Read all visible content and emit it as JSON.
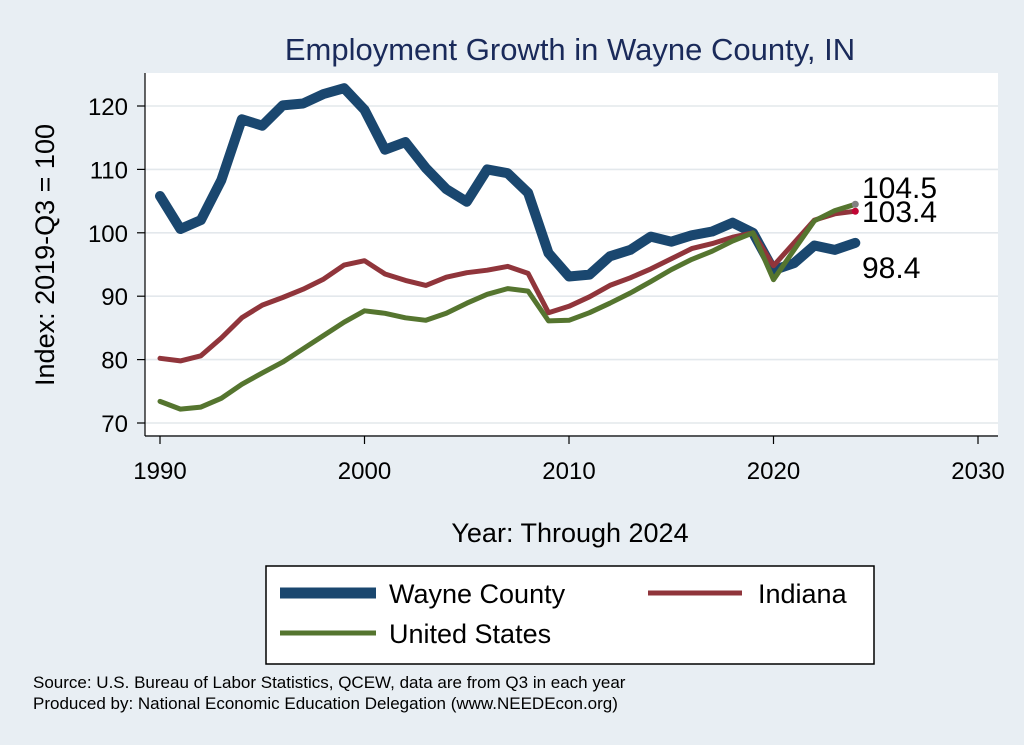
{
  "chart_data": {
    "type": "line",
    "title": "Employment Growth in Wayne County, IN",
    "xlabel": "Year: Through 2024",
    "ylabel": "Index: 2019-Q3 = 100",
    "xlim": [
      1990,
      2030
    ],
    "ylim": [
      68,
      126
    ],
    "x_ticks": [
      1990,
      2000,
      2010,
      2020,
      2030
    ],
    "x_tick_labels": [
      "1990",
      "2000",
      "2010",
      "2020",
      "2030"
    ],
    "y_ticks": [
      70,
      80,
      90,
      100,
      110,
      120
    ],
    "y_tick_labels": [
      "70",
      "80",
      "90",
      "100",
      "110",
      "120"
    ],
    "x": [
      1990,
      1991,
      1992,
      1993,
      1994,
      1995,
      1996,
      1997,
      1998,
      1999,
      2000,
      2001,
      2002,
      2003,
      2004,
      2005,
      2006,
      2007,
      2008,
      2009,
      2010,
      2011,
      2012,
      2013,
      2014,
      2015,
      2016,
      2017,
      2018,
      2019,
      2020,
      2021,
      2022,
      2023,
      2024
    ],
    "series": [
      {
        "name": "Wayne  County",
        "color": "#1a476f",
        "values": [
          105.8,
          100.6,
          102,
          108.3,
          117.9,
          116.9,
          120.1,
          120.4,
          121.9,
          122.8,
          119.4,
          113.1,
          114.3,
          110.2,
          106.9,
          104.9,
          110,
          109.4,
          106.3,
          96.8,
          93.1,
          93.4,
          96.3,
          97.3,
          99.4,
          98.6,
          99.6,
          100.2,
          101.6,
          100,
          94.1,
          95.2,
          98,
          97.3,
          98.4
        ],
        "end_label": "98.4",
        "end_color": "#1a476f"
      },
      {
        "name": "Indiana",
        "color": "#90353b",
        "values": [
          80.2,
          79.8,
          80.6,
          83.4,
          86.6,
          88.6,
          89.8,
          91.1,
          92.7,
          94.9,
          95.6,
          93.5,
          92.5,
          91.7,
          93,
          93.7,
          94.1,
          94.7,
          93.6,
          87.4,
          88.4,
          89.9,
          91.7,
          92.9,
          94.3,
          95.9,
          97.5,
          98.3,
          99.3,
          100,
          94.8,
          98.4,
          102,
          103,
          103.4
        ],
        "end_label": "103.4",
        "end_color": "#c10534"
      },
      {
        "name": "United States",
        "color": "#55752f",
        "values": [
          73.4,
          72.2,
          72.5,
          73.9,
          76.1,
          77.9,
          79.6,
          81.7,
          83.8,
          85.9,
          87.7,
          87.3,
          86.6,
          86.2,
          87.3,
          88.9,
          90.3,
          91.2,
          90.8,
          86.1,
          86.2,
          87.4,
          88.9,
          90.5,
          92.3,
          94.2,
          95.8,
          97.1,
          98.7,
          100,
          92.6,
          97.3,
          101.9,
          103.5,
          104.5
        ],
        "end_label": "104.5",
        "end_color": "#808080"
      }
    ],
    "legend": {
      "placement": "bottom",
      "entries": [
        "Wayne  County",
        "Indiana",
        "United States"
      ]
    },
    "grid": true
  },
  "footnotes": {
    "source": "Source: U.S. Bureau of Labor Statistics, QCEW, data are from Q3 in each year",
    "produced_by": "Produced by: National Economic Education Delegation (www.NEEDEcon.org)"
  }
}
